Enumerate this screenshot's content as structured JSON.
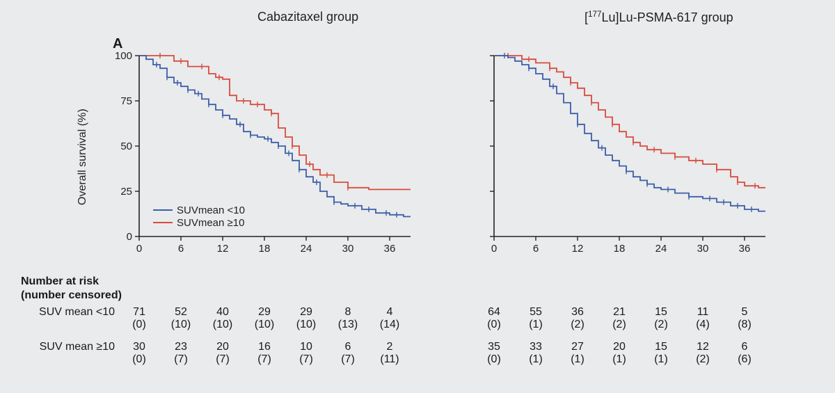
{
  "layout": {
    "figure_bg": "#e9ebec",
    "axis_color": "#222222",
    "tick_fontsize": 15,
    "label_fontsize": 16,
    "title_fontsize": 18,
    "panel_label_fontsize": 20
  },
  "panel_label": "A",
  "titles": {
    "left": "Cabazitaxel group",
    "right_html": "[<sup>177</sup>Lu]Lu-PSMA-617 group"
  },
  "ylabel": "Overall survival (%)",
  "xaxis": {
    "min": 0,
    "max": 39,
    "ticks": [
      0,
      6,
      12,
      18,
      24,
      30,
      36
    ]
  },
  "yaxis": {
    "min": 0,
    "max": 100,
    "ticks": [
      0,
      25,
      50,
      75,
      100
    ]
  },
  "series_colors": {
    "lt10": "#3c5ea8",
    "ge10": "#d94b3f"
  },
  "legend": {
    "lt10": "SUVmean <10",
    "ge10": "SUVmean ≥10"
  },
  "plots": {
    "left": {
      "lt10": {
        "steps": [
          [
            0,
            100
          ],
          [
            1,
            98
          ],
          [
            2,
            95
          ],
          [
            3,
            93
          ],
          [
            4,
            88
          ],
          [
            5,
            85
          ],
          [
            6,
            83
          ],
          [
            7,
            81
          ],
          [
            8,
            79
          ],
          [
            9,
            76
          ],
          [
            10,
            73
          ],
          [
            11,
            70
          ],
          [
            12,
            67
          ],
          [
            13,
            65
          ],
          [
            14,
            62
          ],
          [
            15,
            58
          ],
          [
            16,
            56
          ],
          [
            17,
            55
          ],
          [
            18,
            54
          ],
          [
            19,
            52
          ],
          [
            20,
            50
          ],
          [
            21,
            46
          ],
          [
            22,
            42
          ],
          [
            23,
            37
          ],
          [
            24,
            33
          ],
          [
            25,
            30
          ],
          [
            26,
            25
          ],
          [
            27,
            22
          ],
          [
            28,
            19
          ],
          [
            29,
            18
          ],
          [
            30,
            17
          ],
          [
            32,
            15
          ],
          [
            34,
            13
          ],
          [
            36,
            12
          ],
          [
            38,
            11
          ],
          [
            39,
            11
          ]
        ],
        "censor_x": [
          2.5,
          4,
          5.5,
          7,
          8.5,
          10,
          12,
          14.5,
          16,
          18.5,
          20,
          21.5,
          23,
          25.5,
          28,
          31,
          33,
          35.5,
          37
        ]
      },
      "ge10": {
        "steps": [
          [
            0,
            100
          ],
          [
            4,
            100
          ],
          [
            5,
            97
          ],
          [
            7,
            94
          ],
          [
            10,
            90
          ],
          [
            11,
            88
          ],
          [
            12,
            87
          ],
          [
            13,
            78
          ],
          [
            14,
            75
          ],
          [
            16,
            73
          ],
          [
            18,
            70
          ],
          [
            19,
            68
          ],
          [
            20,
            60
          ],
          [
            21,
            55
          ],
          [
            22,
            50
          ],
          [
            23,
            45
          ],
          [
            24,
            40
          ],
          [
            25,
            37
          ],
          [
            26,
            34
          ],
          [
            28,
            30
          ],
          [
            30,
            27
          ],
          [
            33,
            26
          ],
          [
            36,
            26
          ],
          [
            39,
            26
          ]
        ],
        "censor_x": [
          3,
          6,
          9,
          11.5,
          15,
          17,
          19,
          22,
          24.5,
          27,
          30
        ]
      }
    },
    "right": {
      "lt10": {
        "steps": [
          [
            0,
            100
          ],
          [
            2,
            99
          ],
          [
            3,
            97
          ],
          [
            4,
            95
          ],
          [
            5,
            93
          ],
          [
            6,
            90
          ],
          [
            7,
            87
          ],
          [
            8,
            83
          ],
          [
            9,
            79
          ],
          [
            10,
            74
          ],
          [
            11,
            68
          ],
          [
            12,
            62
          ],
          [
            13,
            57
          ],
          [
            14,
            53
          ],
          [
            15,
            49
          ],
          [
            16,
            45
          ],
          [
            17,
            42
          ],
          [
            18,
            39
          ],
          [
            19,
            36
          ],
          [
            20,
            33
          ],
          [
            21,
            31
          ],
          [
            22,
            29
          ],
          [
            23,
            27
          ],
          [
            24,
            26
          ],
          [
            26,
            24
          ],
          [
            28,
            22
          ],
          [
            30,
            21
          ],
          [
            32,
            19
          ],
          [
            34,
            17
          ],
          [
            36,
            15
          ],
          [
            38,
            14
          ],
          [
            39,
            14
          ]
        ],
        "censor_x": [
          1.5,
          5,
          8.5,
          12,
          15.5,
          19,
          22,
          25,
          28,
          31,
          33,
          35,
          37
        ]
      },
      "ge10": {
        "steps": [
          [
            0,
            100
          ],
          [
            3,
            100
          ],
          [
            4,
            98
          ],
          [
            6,
            96
          ],
          [
            8,
            93
          ],
          [
            9,
            91
          ],
          [
            10,
            88
          ],
          [
            11,
            85
          ],
          [
            12,
            82
          ],
          [
            13,
            78
          ],
          [
            14,
            74
          ],
          [
            15,
            70
          ],
          [
            16,
            66
          ],
          [
            17,
            62
          ],
          [
            18,
            58
          ],
          [
            19,
            55
          ],
          [
            20,
            52
          ],
          [
            21,
            50
          ],
          [
            22,
            48
          ],
          [
            24,
            46
          ],
          [
            26,
            44
          ],
          [
            28,
            42
          ],
          [
            30,
            40
          ],
          [
            32,
            37
          ],
          [
            34,
            33
          ],
          [
            35,
            30
          ],
          [
            36,
            28
          ],
          [
            38,
            27
          ],
          [
            39,
            27
          ]
        ],
        "censor_x": [
          2,
          5,
          8,
          11,
          14,
          17,
          20,
          23,
          26,
          29,
          32,
          35,
          37.5
        ]
      }
    }
  },
  "risk": {
    "header": "Number at risk\n(number censored)",
    "rows": [
      {
        "label": "SUV mean <10",
        "left": {
          "n": [
            71,
            52,
            40,
            29,
            29,
            8,
            4
          ],
          "c": [
            0,
            10,
            10,
            10,
            10,
            13,
            14
          ]
        },
        "right": {
          "n": [
            64,
            55,
            36,
            21,
            15,
            11,
            5
          ],
          "c": [
            0,
            1,
            2,
            2,
            2,
            4,
            8
          ]
        }
      },
      {
        "label": "SUV mean ≥10",
        "left": {
          "n": [
            30,
            23,
            20,
            16,
            10,
            6,
            2
          ],
          "c": [
            0,
            7,
            7,
            7,
            7,
            7,
            11
          ]
        },
        "right": {
          "n": [
            35,
            33,
            27,
            20,
            15,
            12,
            6
          ],
          "c": [
            0,
            1,
            1,
            1,
            1,
            2,
            6
          ]
        }
      }
    ]
  }
}
